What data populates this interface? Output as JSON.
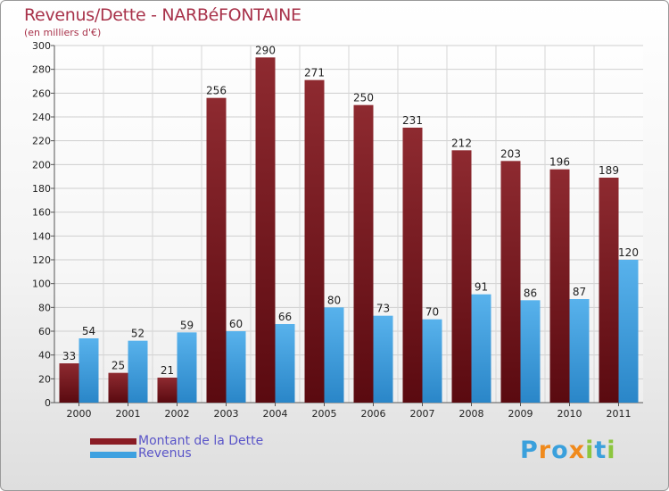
{
  "header": {
    "title": "Revenus/Dette - NARBéFONTAINE",
    "subtitle": "(en milliers d'€)"
  },
  "colors": {
    "dette": "#8a1c24",
    "revenus": "#3ea1e0",
    "title": "#a8324a",
    "legend_text": "#5a55c8"
  },
  "legend": {
    "dette_label": "Montant de la Dette",
    "revenus_label": "Revenus"
  },
  "logo": {
    "text": "Proxiti"
  },
  "chart_data": {
    "type": "bar",
    "title": "Revenus/Dette - NARBéFONTAINE",
    "ylabel": "(en milliers d'€)",
    "xlabel": "",
    "ylim": [
      0,
      300
    ],
    "yticks": [
      0,
      20,
      40,
      60,
      80,
      100,
      120,
      140,
      160,
      180,
      200,
      220,
      240,
      260,
      280,
      300
    ],
    "grid": true,
    "legend_position": "bottom-left",
    "categories": [
      "2000",
      "2001",
      "2002",
      "2003",
      "2004",
      "2005",
      "2006",
      "2007",
      "2008",
      "2009",
      "2010",
      "2011"
    ],
    "series": [
      {
        "name": "Montant de la Dette",
        "values": [
          33,
          25,
          21,
          256,
          290,
          271,
          250,
          231,
          212,
          203,
          196,
          189
        ]
      },
      {
        "name": "Revenus",
        "values": [
          54,
          52,
          59,
          60,
          66,
          80,
          73,
          70,
          91,
          86,
          87,
          120
        ]
      }
    ]
  }
}
